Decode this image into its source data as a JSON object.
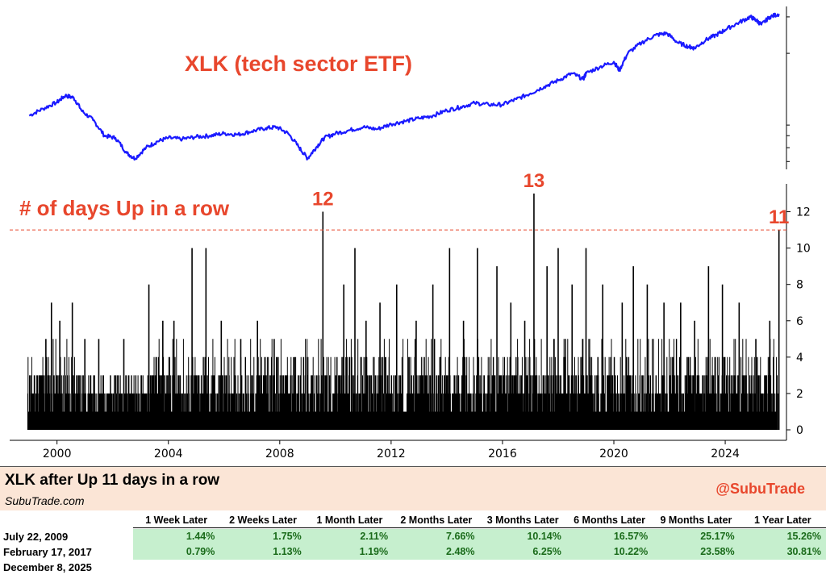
{
  "chart_data": [
    {
      "type": "line",
      "title": "XLK (tech sector ETF)",
      "series": [
        {
          "x": [
            1999.0,
            1999.5,
            2000.0,
            2000.3,
            2000.6,
            2000.9,
            2001.3,
            2001.7,
            2002.1,
            2002.5,
            2002.8,
            2003.2,
            2003.6,
            2004.0,
            2004.5,
            2005.0,
            2005.5,
            2006.0,
            2006.5,
            2007.0,
            2007.5,
            2007.9,
            2008.3,
            2008.7,
            2009.0,
            2009.3,
            2009.6,
            2010.0,
            2010.5,
            2011.0,
            2011.5,
            2012.0,
            2012.5,
            2013.0,
            2013.5,
            2014.0,
            2014.5,
            2015.0,
            2015.5,
            2016.0,
            2016.5,
            2017.0,
            2017.5,
            2018.0,
            2018.5,
            2018.9,
            2019.0,
            2019.5,
            2020.0,
            2020.2,
            2020.5,
            2021.0,
            2021.5,
            2021.9,
            2022.3,
            2022.7,
            2022.9,
            2023.3,
            2023.7,
            2024.0,
            2024.5,
            2024.9,
            2025.1,
            2025.3,
            2025.6,
            2025.93
          ],
          "y": [
            100,
            108,
            116,
            125,
            122,
            105,
            95,
            80,
            78,
            66,
            62,
            70,
            75,
            78,
            77,
            79,
            80,
            82,
            81,
            84,
            87,
            88,
            82,
            70,
            62,
            70,
            78,
            82,
            85,
            88,
            86,
            91,
            94,
            97,
            100,
            106,
            110,
            115,
            113,
            113,
            120,
            128,
            138,
            148,
            160,
            150,
            160,
            172,
            182,
            165,
            200,
            225,
            245,
            250,
            225,
            215,
            212,
            232,
            246,
            260,
            282,
            300,
            290,
            275,
            300,
            310
          ]
        }
      ]
    },
    {
      "type": "bar",
      "title": "# of days Up in a row",
      "yticks": [
        0,
        2,
        4,
        6,
        8,
        10,
        12
      ],
      "ylim": [
        0,
        13
      ],
      "xticks": [
        "2000",
        "2004",
        "2008",
        "2012",
        "2016",
        "2020",
        "2024"
      ],
      "xlim": [
        1998.3,
        2026.2
      ],
      "threshold": 11,
      "annotations": [
        {
          "label": "12",
          "x": 2009.55,
          "value": 12
        },
        {
          "label": "13",
          "x": 2017.13,
          "value": 13
        },
        {
          "label": "11",
          "x": 2025.93,
          "value": 11
        }
      ],
      "spikes": [
        {
          "x": 1999.6,
          "y": 5
        },
        {
          "x": 1999.8,
          "y": 7
        },
        {
          "x": 2000.1,
          "y": 6
        },
        {
          "x": 2000.55,
          "y": 7
        },
        {
          "x": 2001.0,
          "y": 5
        },
        {
          "x": 2001.5,
          "y": 5
        },
        {
          "x": 2002.4,
          "y": 5
        },
        {
          "x": 2003.3,
          "y": 8
        },
        {
          "x": 2003.8,
          "y": 6
        },
        {
          "x": 2004.2,
          "y": 6
        },
        {
          "x": 2004.85,
          "y": 10
        },
        {
          "x": 2005.35,
          "y": 10
        },
        {
          "x": 2005.9,
          "y": 6
        },
        {
          "x": 2006.6,
          "y": 5
        },
        {
          "x": 2007.2,
          "y": 6
        },
        {
          "x": 2007.8,
          "y": 5
        },
        {
          "x": 2008.5,
          "y": 4
        },
        {
          "x": 2009.55,
          "y": 12
        },
        {
          "x": 2010.3,
          "y": 8
        },
        {
          "x": 2010.7,
          "y": 10
        },
        {
          "x": 2011.1,
          "y": 6
        },
        {
          "x": 2011.6,
          "y": 7
        },
        {
          "x": 2012.2,
          "y": 8
        },
        {
          "x": 2012.9,
          "y": 6
        },
        {
          "x": 2013.5,
          "y": 8
        },
        {
          "x": 2014.1,
          "y": 10
        },
        {
          "x": 2014.6,
          "y": 6
        },
        {
          "x": 2015.1,
          "y": 10
        },
        {
          "x": 2015.8,
          "y": 9
        },
        {
          "x": 2016.3,
          "y": 7
        },
        {
          "x": 2016.8,
          "y": 6
        },
        {
          "x": 2017.13,
          "y": 13
        },
        {
          "x": 2017.6,
          "y": 9
        },
        {
          "x": 2018.0,
          "y": 10
        },
        {
          "x": 2018.5,
          "y": 8
        },
        {
          "x": 2019.0,
          "y": 10
        },
        {
          "x": 2019.6,
          "y": 8
        },
        {
          "x": 2020.3,
          "y": 7
        },
        {
          "x": 2020.7,
          "y": 9
        },
        {
          "x": 2021.2,
          "y": 8
        },
        {
          "x": 2021.8,
          "y": 7
        },
        {
          "x": 2022.4,
          "y": 7
        },
        {
          "x": 2022.9,
          "y": 6
        },
        {
          "x": 2023.4,
          "y": 9
        },
        {
          "x": 2023.9,
          "y": 8
        },
        {
          "x": 2024.5,
          "y": 7
        },
        {
          "x": 2025.1,
          "y": 5
        },
        {
          "x": 2025.6,
          "y": 6
        },
        {
          "x": 2025.93,
          "y": 11
        }
      ]
    }
  ],
  "table": {
    "title": "XLK after Up 11 days in a row",
    "subtitle": "SubuTrade.com",
    "handle": "@SubuTrade",
    "columns": [
      "1 Week Later",
      "2 Weeks Later",
      "1 Month Later",
      "2 Months Later",
      "3 Months Later",
      "6 Months Later",
      "9 Months Later",
      "1 Year Later"
    ],
    "rows": [
      {
        "date": "July 22, 2009",
        "values": [
          "1.44%",
          "1.75%",
          "2.11%",
          "7.66%",
          "10.14%",
          "16.57%",
          "25.17%",
          "15.26%"
        ]
      },
      {
        "date": "February 17, 2017",
        "values": [
          "0.79%",
          "1.13%",
          "1.19%",
          "2.48%",
          "6.25%",
          "10.22%",
          "23.58%",
          "30.81%"
        ]
      },
      {
        "date": "December 8, 2025",
        "values": []
      }
    ]
  }
}
